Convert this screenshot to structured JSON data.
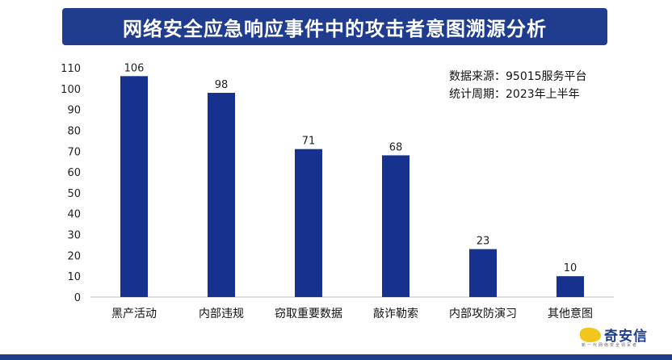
{
  "title": "网络安全应急响应事件中的攻击者意图溯源分析",
  "source_lines": [
    "数据来源：95015服务平台",
    "统计周期：2023年上半年"
  ],
  "logo": {
    "name": "奇安信",
    "tagline": "新一代网络安全领军者"
  },
  "colors": {
    "bar": "#17318f",
    "banner": "#1f3c8f",
    "axis": "#333333"
  },
  "chart_data": {
    "type": "bar",
    "title": "网络安全应急响应事件中的攻击者意图溯源分析",
    "categories": [
      "黑产活动",
      "内部违规",
      "窃取重要数据",
      "敲诈勒索",
      "内部攻防演习",
      "其他意图"
    ],
    "values": [
      106,
      98,
      71,
      68,
      23,
      10
    ],
    "data_labels": [
      "106",
      "98",
      "71",
      "68",
      "23",
      "10"
    ],
    "ylim": [
      0,
      110
    ],
    "yticks": [
      0,
      10,
      20,
      30,
      40,
      50,
      60,
      70,
      80,
      90,
      100,
      110
    ],
    "xlabel": "",
    "ylabel": "",
    "grid": false,
    "legend": "none"
  }
}
